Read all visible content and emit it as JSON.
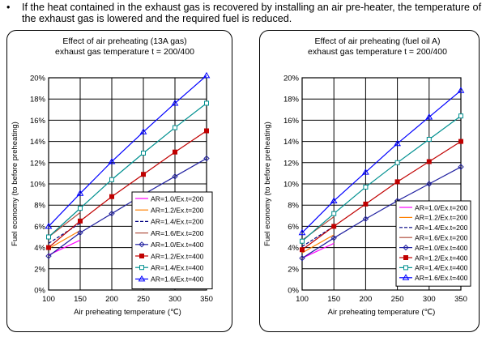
{
  "intro": {
    "bullet": "•",
    "text": "If the heat contained in the exhaust gas is recovered by installing an air pre-heater, the temperature of the exhaust gas is lowered and the required fuel is reduced."
  },
  "series_styles": [
    {
      "color": "#ff00ff",
      "marker": "none",
      "dash": ""
    },
    {
      "color": "#ff8000",
      "marker": "none",
      "dash": ""
    },
    {
      "color": "#000080",
      "marker": "none",
      "dash": "4,2"
    },
    {
      "color": "#b05040",
      "marker": "none",
      "dash": ""
    },
    {
      "color": "#2020a0",
      "marker": "diamond",
      "dash": ""
    },
    {
      "color": "#c00000",
      "marker": "square",
      "dash": ""
    },
    {
      "color": "#009090",
      "marker": "square-open",
      "dash": ""
    },
    {
      "color": "#0000ff",
      "marker": "triangle",
      "dash": ""
    }
  ],
  "chart_data": [
    {
      "type": "line",
      "title": "Effect of air preheating (13A gas)",
      "subtitle": "exhaust gas temperature t = 200/400",
      "xlabel": "Air preheating temperature (℃)",
      "ylabel": "Fuel economy (to before preheating)",
      "xlim": [
        100,
        350
      ],
      "ylim": [
        0,
        20
      ],
      "xticks": [
        "100",
        "150",
        "200",
        "250",
        "300",
        "350"
      ],
      "yticks": [
        "0%",
        "2%",
        "4%",
        "6%",
        "8%",
        "10%",
        "12%",
        "14%",
        "16%",
        "18%",
        "20%"
      ],
      "grid": true,
      "legend_position": "bottom-right",
      "series": [
        {
          "name": "AR=1.0/Ex.t=200",
          "x": [
            100,
            150
          ],
          "y": [
            3.3,
            4.7
          ]
        },
        {
          "name": "AR=1.2/Ex.t=200",
          "x": [
            100,
            150
          ],
          "y": [
            3.9,
            5.6
          ]
        },
        {
          "name": "AR=1.4/Ex.t=200",
          "x": [
            100,
            150
          ],
          "y": [
            4.4,
            6.3
          ]
        },
        {
          "name": "AR=1.6/Ex.t=200",
          "x": [
            100,
            150
          ],
          "y": [
            5.0,
            7.3
          ]
        },
        {
          "name": "AR=1.0/Ex.t=400",
          "x": [
            100,
            150,
            200,
            250,
            300,
            350
          ],
          "y": [
            3.2,
            5.4,
            7.2,
            9.0,
            10.7,
            12.4
          ]
        },
        {
          "name": "AR=1.2/Ex.t=400",
          "x": [
            100,
            150,
            200,
            250,
            300,
            350
          ],
          "y": [
            4.0,
            6.5,
            8.8,
            10.9,
            13.0,
            15.0
          ]
        },
        {
          "name": "AR=1.4/Ex.t=400",
          "x": [
            100,
            150,
            200,
            250,
            300,
            350
          ],
          "y": [
            5.0,
            7.7,
            10.4,
            12.9,
            15.3,
            17.6
          ]
        },
        {
          "name": "AR=1.6/Ex.t=400",
          "x": [
            100,
            150,
            200,
            250,
            300,
            350
          ],
          "y": [
            6.0,
            9.1,
            12.1,
            14.9,
            17.6,
            20.2
          ]
        }
      ]
    },
    {
      "type": "line",
      "title": "Effect of air preheating (fuel oil A)",
      "subtitle": "exhaust gas temperature t = 200/400",
      "xlabel": "Air preheating temperature (℃)",
      "ylabel": "Fuel economy (to before preheating)",
      "xlim": [
        100,
        350
      ],
      "ylim": [
        0,
        20
      ],
      "xticks": [
        "100",
        "150",
        "200",
        "250",
        "300",
        "350"
      ],
      "yticks": [
        "0%",
        "2%",
        "4%",
        "6%",
        "8%",
        "10%",
        "12%",
        "14%",
        "16%",
        "18%",
        "20%"
      ],
      "grid": true,
      "legend_position": "bottom-right",
      "series": [
        {
          "name": "AR=1.0/Ex.t=200",
          "x": [
            100,
            150
          ],
          "y": [
            3.0,
            4.4
          ]
        },
        {
          "name": "AR=1.2/Ex.t=200",
          "x": [
            100,
            150
          ],
          "y": [
            3.5,
            5.2
          ]
        },
        {
          "name": "AR=1.4/Ex.t=200",
          "x": [
            100,
            150
          ],
          "y": [
            4.1,
            6.0
          ]
        },
        {
          "name": "AR=1.6/Ex.t=200",
          "x": [
            100,
            150
          ],
          "y": [
            4.7,
            6.9
          ]
        },
        {
          "name": "AR=1.0/Ex.t=400",
          "x": [
            100,
            150,
            200,
            250,
            300,
            350
          ],
          "y": [
            3.0,
            4.9,
            6.7,
            8.4,
            10.0,
            11.6
          ]
        },
        {
          "name": "AR=1.2/Ex.t=400",
          "x": [
            100,
            150,
            200,
            250,
            300,
            350
          ],
          "y": [
            3.8,
            6.0,
            8.1,
            10.2,
            12.1,
            14.0
          ]
        },
        {
          "name": "AR=1.4/Ex.t=400",
          "x": [
            100,
            150,
            200,
            250,
            300,
            350
          ],
          "y": [
            4.6,
            7.2,
            9.7,
            12.0,
            14.2,
            16.4
          ]
        },
        {
          "name": "AR=1.6/Ex.t=400",
          "x": [
            100,
            150,
            200,
            250,
            300,
            350
          ],
          "y": [
            5.4,
            8.4,
            11.1,
            13.8,
            16.3,
            18.8
          ]
        }
      ]
    }
  ]
}
